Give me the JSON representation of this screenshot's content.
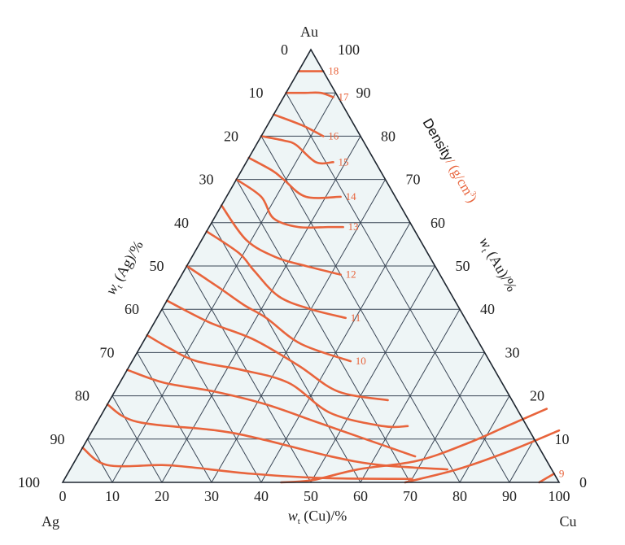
{
  "chart_data": {
    "type": "ternary-contour",
    "vertices": {
      "top": "Au",
      "left": "Ag",
      "right": "Cu"
    },
    "axes": {
      "left": {
        "label": "w_t (Ag)/%",
        "label_main": "w",
        "label_sub": "t",
        "label_rest": " (Ag)/%",
        "ticks": [
          "100",
          "90",
          "80",
          "70",
          "60",
          "50",
          "40",
          "30",
          "20",
          "10",
          "0"
        ]
      },
      "right": {
        "label": "w_t (Au)/%",
        "label_main": "w",
        "label_sub": "t",
        "label_rest": " (Au)/%",
        "ticks": [
          "100",
          "90",
          "80",
          "70",
          "60",
          "50",
          "40",
          "30",
          "20",
          "10",
          "0"
        ]
      },
      "bottom": {
        "label": "w_t (Cu)/%",
        "label_main": "w",
        "label_sub": "t",
        "label_rest": " (Cu)/%",
        "ticks": [
          "0",
          "10",
          "20",
          "30",
          "40",
          "50",
          "60",
          "70",
          "80",
          "90",
          "100"
        ]
      }
    },
    "range": [
      0,
      100
    ],
    "grid": true,
    "grid_step": 10,
    "contour_title": "Density / (g/cm³)",
    "contour_title_density": "Density",
    "contour_title_unit": "/ (g/cm",
    "contour_title_sup": "3",
    "contour_title_close": ")",
    "contour_color": "#e8643c",
    "grid_color": "#3a4656",
    "fill_color": "#eef5f6",
    "contours": [
      {
        "label": "18",
        "points": [
          [
            0,
            95
          ],
          [
            5,
            95
          ]
        ]
      },
      {
        "label": "17",
        "points": [
          [
            0,
            90
          ],
          [
            3.6,
            90
          ],
          [
            7,
            90
          ],
          [
            10,
            89
          ]
        ]
      },
      {
        "label": "16",
        "points": [
          [
            0,
            85
          ],
          [
            7,
            82.5
          ],
          [
            12.5,
            80
          ]
        ]
      },
      {
        "label": "15",
        "points": [
          [
            0,
            80
          ],
          [
            5,
            79
          ],
          [
            8,
            78
          ],
          [
            14,
            74
          ],
          [
            17.5,
            74
          ]
        ]
      },
      {
        "label": "14",
        "points": [
          [
            0,
            75
          ],
          [
            6.3,
            72
          ],
          [
            9.5,
            70
          ],
          [
            16,
            66
          ],
          [
            23,
            66
          ]
        ]
      },
      {
        "label": "13",
        "points": [
          [
            0,
            70
          ],
          [
            7,
            66
          ],
          [
            12,
            61
          ],
          [
            18,
            59
          ],
          [
            24,
            59
          ],
          [
            27,
            59
          ]
        ]
      },
      {
        "label": "12",
        "points": [
          [
            0,
            64
          ],
          [
            9,
            56
          ],
          [
            17,
            52
          ],
          [
            24,
            50
          ],
          [
            32,
            48
          ]
        ]
      },
      {
        "label": "11",
        "points": [
          [
            0,
            58
          ],
          [
            9,
            53
          ],
          [
            14,
            49
          ],
          [
            22,
            43
          ],
          [
            30,
            40
          ],
          [
            38,
            38
          ]
        ]
      },
      {
        "label": "10",
        "points": [
          [
            0,
            50
          ],
          [
            9,
            45
          ],
          [
            16,
            41
          ],
          [
            22,
            38
          ],
          [
            32,
            32
          ],
          [
            44,
            28
          ]
        ]
      },
      {
        "label": "",
        "points": [
          [
            0,
            42
          ],
          [
            11,
            37
          ],
          [
            22,
            33
          ],
          [
            34,
            27
          ],
          [
            45,
            21
          ],
          [
            56,
            19
          ]
        ]
      },
      {
        "label": "",
        "points": [
          [
            0,
            34
          ],
          [
            6,
            31
          ],
          [
            13,
            28
          ],
          [
            23,
            26
          ],
          [
            34,
            23
          ],
          [
            46,
            16
          ],
          [
            58,
            13
          ],
          [
            63,
            13
          ]
        ]
      },
      {
        "label": "",
        "points": [
          [
            0,
            26
          ],
          [
            9,
            23
          ],
          [
            20,
            21
          ],
          [
            32,
            18
          ],
          [
            44,
            14
          ],
          [
            56,
            10
          ],
          [
            68,
            6
          ]
        ]
      },
      {
        "label": "",
        "points": [
          [
            0,
            18
          ],
          [
            8,
            14
          ],
          [
            25,
            12
          ],
          [
            35,
            10
          ],
          [
            51,
            6
          ],
          [
            62,
            4
          ],
          [
            76,
            3
          ]
        ]
      },
      {
        "label": "",
        "points": [
          [
            0,
            8
          ],
          [
            7,
            4
          ],
          [
            18,
            4
          ],
          [
            24,
            3.5
          ],
          [
            37,
            2
          ],
          [
            52,
            1
          ],
          [
            70,
            0.8
          ]
        ]
      },
      {
        "label": "",
        "points": [
          [
            44,
            0
          ],
          [
            50,
            0.5
          ],
          [
            58,
            3
          ],
          [
            69,
            5
          ],
          [
            77,
            9
          ],
          [
            83,
            13
          ],
          [
            89,
            17
          ]
        ]
      },
      {
        "label": "",
        "points": [
          [
            69,
            0
          ],
          [
            78,
            3
          ],
          [
            86,
            7
          ],
          [
            94,
            12
          ]
        ]
      },
      {
        "label": "9",
        "points": [
          [
            96,
            0
          ],
          [
            98,
            2
          ]
        ]
      }
    ]
  }
}
